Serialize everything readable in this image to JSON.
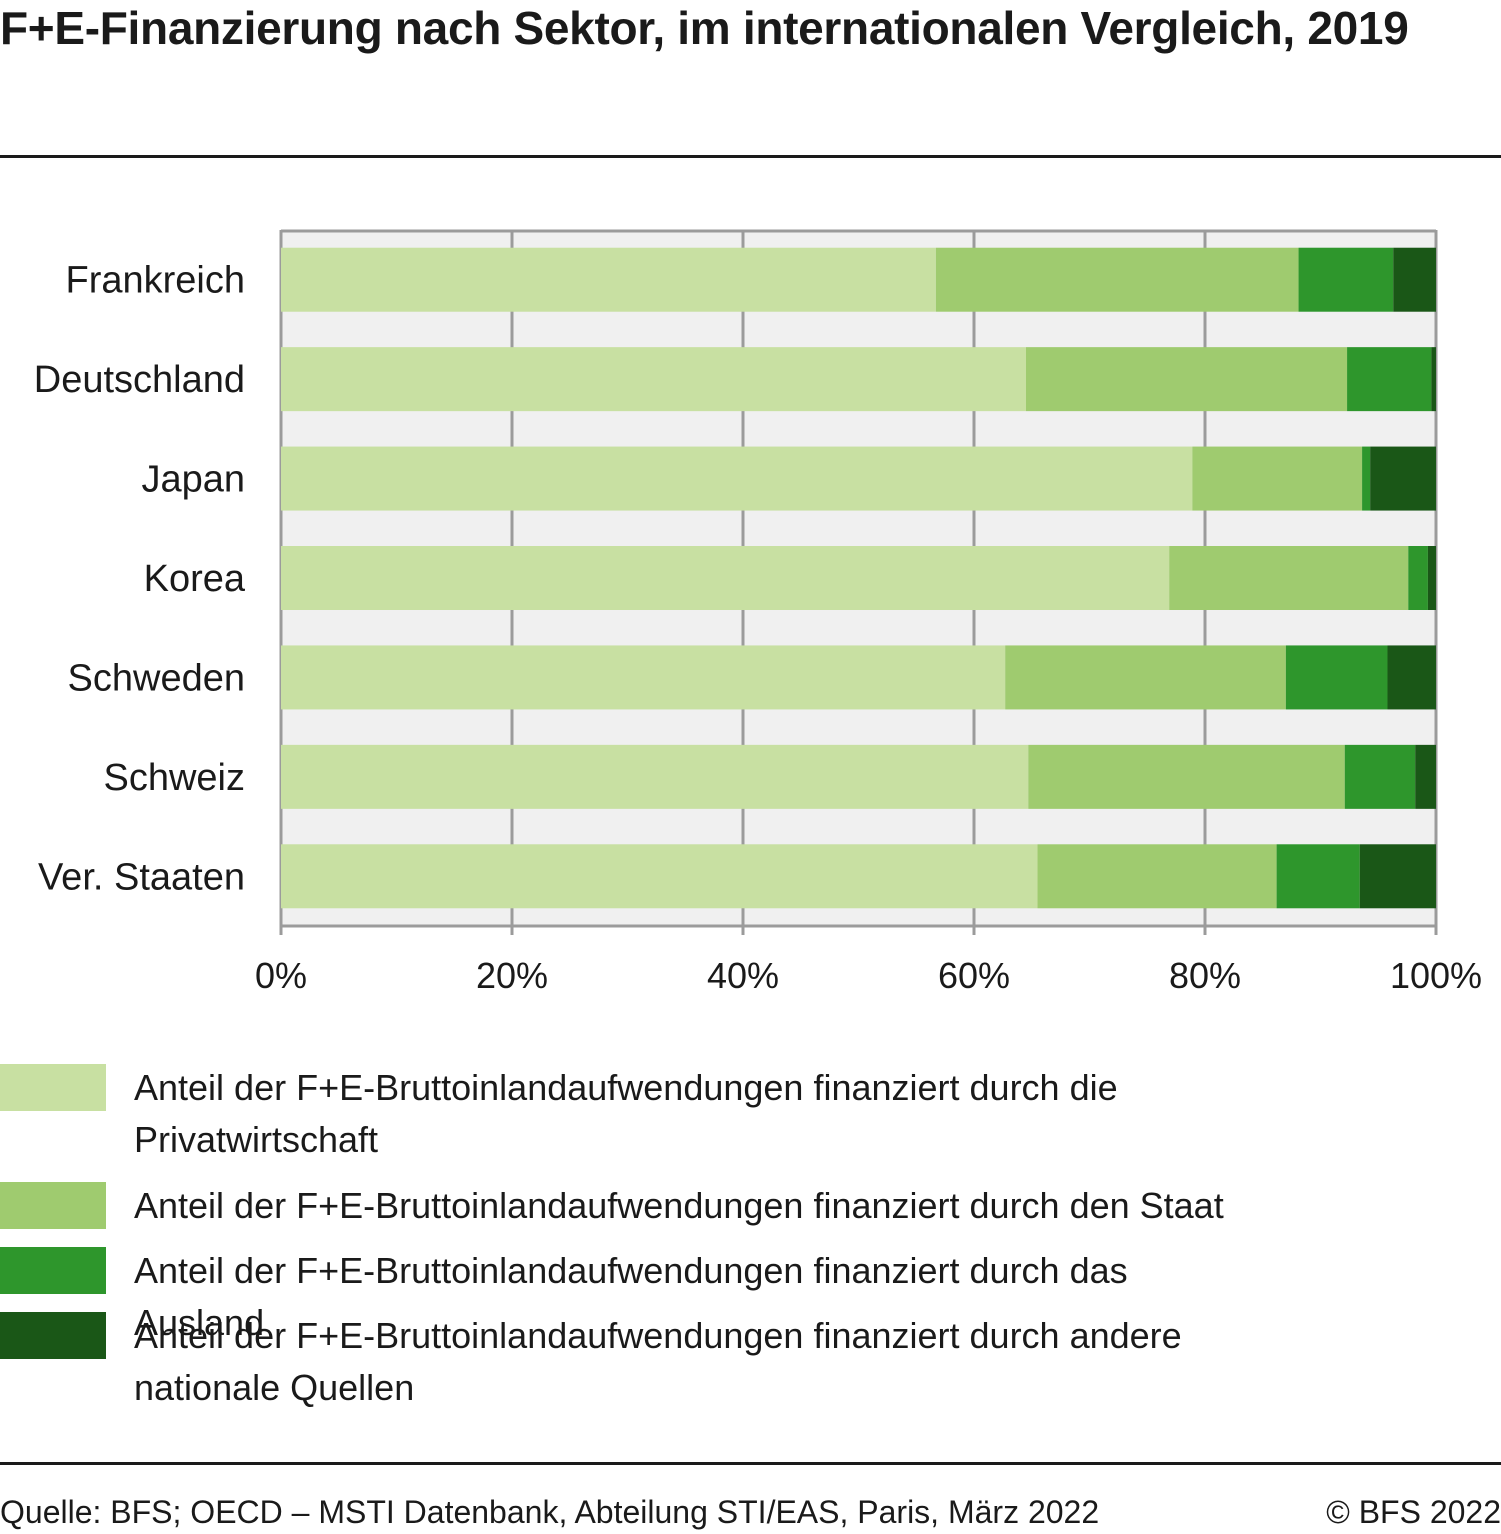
{
  "title": "F+E-Finanzierung nach Sektor, im internationalen Vergleich, 2019",
  "chart_data": {
    "type": "bar",
    "orientation": "horizontal",
    "stacked": true,
    "title": "F+E-Finanzierung nach Sektor, im internationalen Vergleich, 2019",
    "xlabel": "",
    "ylabel": "",
    "xlim": [
      0,
      100
    ],
    "x_ticks": [
      "0%",
      "20%",
      "40%",
      "60%",
      "80%",
      "100%"
    ],
    "x_tick_values": [
      0,
      20,
      40,
      60,
      80,
      100
    ],
    "grid": true,
    "categories": [
      "Frankreich",
      "Deutschland",
      "Japan",
      "Korea",
      "Schweden",
      "Schweiz",
      "Ver. Staaten"
    ],
    "series": [
      {
        "name": "Anteil der F+E-Bruttoinlandaufwendungen finanziert durch die Privatwirtschaft",
        "color": "#c8e0a2",
        "values": [
          56.7,
          64.5,
          78.9,
          76.9,
          62.7,
          64.7,
          65.5
        ]
      },
      {
        "name": "Anteil der F+E-Bruttoinlandaufwendungen finanziert durch den Staat",
        "color": "#9fcb6f",
        "values": [
          31.4,
          27.8,
          14.7,
          20.7,
          24.3,
          27.4,
          20.7
        ]
      },
      {
        "name": "Anteil der F+E-Bruttoinlandaufwendungen finanziert durch das Ausland",
        "color": "#2e962c",
        "values": [
          8.2,
          7.3,
          0.7,
          1.7,
          8.8,
          6.1,
          7.2
        ]
      },
      {
        "name": "Anteil der F+E-Bruttoinlandaufwendungen finanziert durch andere nationale Quellen",
        "color": "#1a5717",
        "values": [
          3.7,
          0.4,
          5.7,
          0.7,
          4.2,
          1.8,
          6.6
        ]
      }
    ],
    "legend_position": "bottom"
  },
  "legend": [
    {
      "label": "Anteil der F+E-Bruttoinlandaufwendungen finanziert durch die Privatwirtschaft",
      "color": "#c8e0a2"
    },
    {
      "label": "Anteil der F+E-Bruttoinlandaufwendungen finanziert durch den Staat",
      "color": "#9fcb6f"
    },
    {
      "label": "Anteil der F+E-Bruttoinlandaufwendungen finanziert durch das Ausland",
      "color": "#2e962c"
    },
    {
      "label": "Anteil der F+E-Bruttoinlandaufwendungen finanziert durch andere nationale Quellen",
      "color": "#1a5717"
    }
  ],
  "footer": {
    "source": "Quelle: BFS; OECD – MSTI Datenbank, Abteilung STI/EAS, Paris, März 2022",
    "copyright": "© BFS 2022"
  },
  "colors": {
    "plot_background": "#f0f0f0",
    "gridline": "#9b9b9b",
    "text": "#1a1a1a"
  }
}
